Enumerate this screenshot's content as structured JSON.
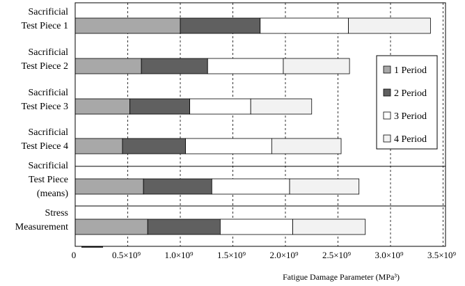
{
  "chart_data": {
    "type": "bar",
    "orientation": "horizontal",
    "stacked": true,
    "categories": [
      [
        "Sacrificial",
        "Test Piece 1"
      ],
      [
        "Sacrificial",
        "Test Piece 2"
      ],
      [
        "Sacrificial",
        "Test Piece 3"
      ],
      [
        "Sacrificial",
        "Test Piece 4"
      ],
      [
        "Sacrificial",
        "Test Piece",
        "(means)"
      ],
      [
        "Stress",
        "Measurement"
      ]
    ],
    "series": [
      {
        "name": "1 Period",
        "color": "#a8a8a8",
        "values": [
          1000000000.0,
          630000000.0,
          520000000.0,
          450000000.0,
          650000000.0,
          690000000.0
        ]
      },
      {
        "name": "2 Period",
        "color": "#606060",
        "values": [
          760000000.0,
          630000000.0,
          570000000.0,
          600000000.0,
          650000000.0,
          690000000.0
        ]
      },
      {
        "name": "3 Period",
        "color": "#ffffff",
        "values": [
          840000000.0,
          720000000.0,
          580000000.0,
          820000000.0,
          740000000.0,
          690000000.0
        ]
      },
      {
        "name": "4 Period",
        "color": "#f2f2f2",
        "values": [
          780000000.0,
          630000000.0,
          580000000.0,
          660000000.0,
          660000000.0,
          690000000.0
        ]
      }
    ],
    "xlim": [
      0,
      3500000000.0
    ],
    "ticks": [
      {
        "value": 0,
        "label": "0"
      },
      {
        "value": 500000000.0,
        "label": "0.5×10⁹"
      },
      {
        "value": 1000000000.0,
        "label": "1.0×10⁹"
      },
      {
        "value": 1500000000.0,
        "label": "1.5×10⁹"
      },
      {
        "value": 2000000000.0,
        "label": "2.0×10⁹"
      },
      {
        "value": 2500000000.0,
        "label": "2.5×10⁹"
      },
      {
        "value": 3000000000.0,
        "label": "3.0×10⁹"
      },
      {
        "value": 3500000000.0,
        "label": "3.5×10⁹"
      }
    ],
    "xlabel": "Fatigue Damage Parameter (MPa³)",
    "ylabel": "",
    "grid": "vertical-dashed",
    "legend_position": "right"
  }
}
